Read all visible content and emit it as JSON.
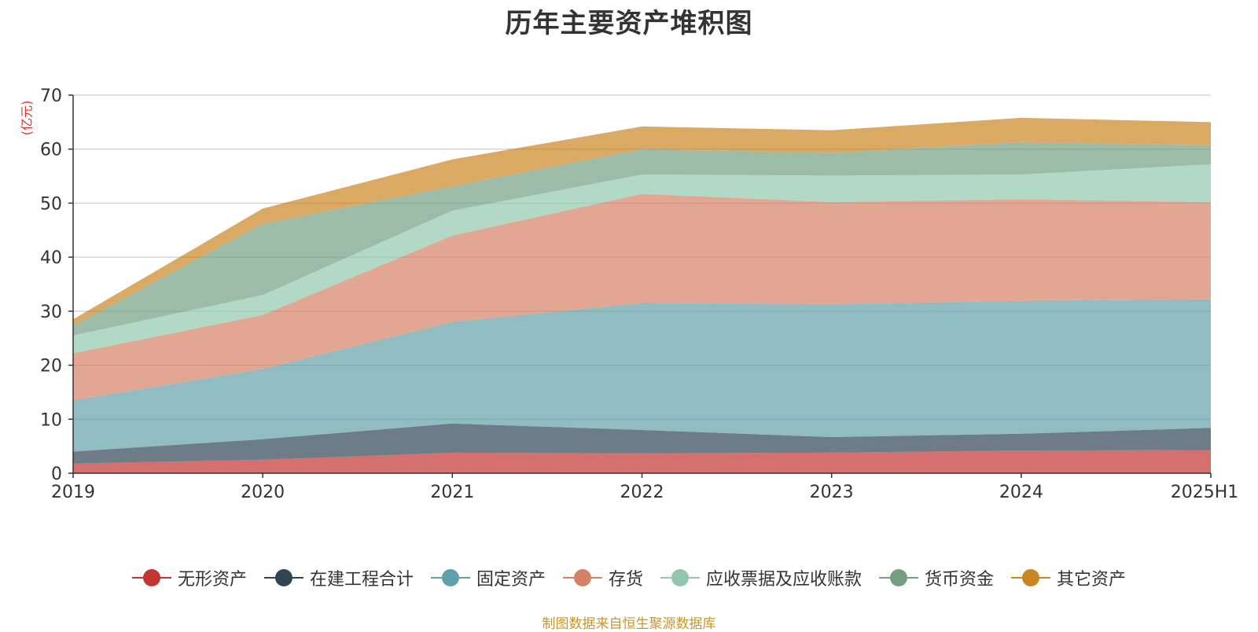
{
  "chart_data": {
    "type": "area",
    "stacked": true,
    "title": "历年主要资产堆积图",
    "y_unit_label": "(亿元)",
    "ylim": [
      0,
      70
    ],
    "y_ticks": [
      0,
      10,
      20,
      30,
      40,
      50,
      60,
      70
    ],
    "grid": true,
    "legend_position": "bottom",
    "categories": [
      "2019",
      "2020",
      "2021",
      "2022",
      "2023",
      "2024",
      "2025H1"
    ],
    "series": [
      {
        "name": "无形资产",
        "color": "#c23531",
        "values": [
          1.8,
          2.5,
          3.8,
          3.7,
          3.8,
          4.2,
          4.3
        ]
      },
      {
        "name": "在建工程合计",
        "color": "#2f4554",
        "values": [
          2.2,
          3.8,
          5.4,
          4.3,
          2.9,
          3.1,
          4.1
        ]
      },
      {
        "name": "固定资产",
        "color": "#61a0a8",
        "values": [
          9.5,
          13.0,
          18.8,
          23.5,
          24.6,
          24.6,
          23.8
        ]
      },
      {
        "name": "存货",
        "color": "#d48265",
        "values": [
          8.7,
          10.0,
          16.0,
          20.2,
          18.9,
          18.8,
          18.0
        ]
      },
      {
        "name": "应收票据及应收账款",
        "color": "#91c7ae",
        "values": [
          3.3,
          3.7,
          4.6,
          3.6,
          4.9,
          4.6,
          7.0
        ]
      },
      {
        "name": "货币资金",
        "color": "#749f83",
        "values": [
          1.8,
          13.2,
          4.5,
          4.7,
          4.2,
          6.0,
          3.5
        ]
      },
      {
        "name": "其它资产",
        "color": "#ca8622",
        "values": [
          1.2,
          2.8,
          5.0,
          4.2,
          4.2,
          4.5,
          4.3
        ]
      }
    ]
  },
  "source_note": "制图数据来自恒生聚源数据库"
}
